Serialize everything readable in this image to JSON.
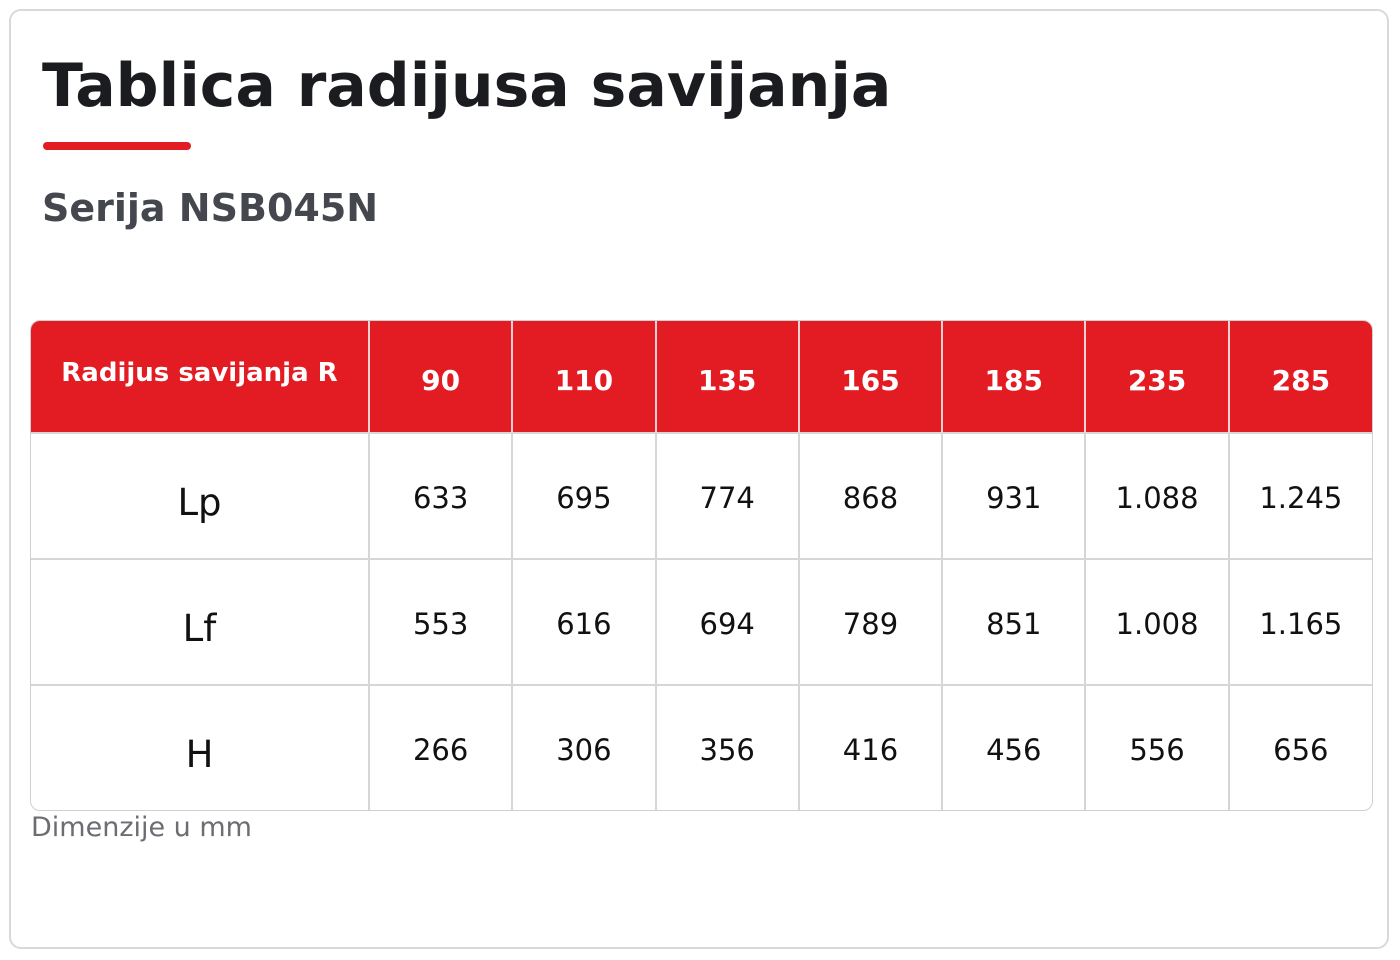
{
  "header": {
    "title": "Tablica radijusa savijanja",
    "subtitle": "Serija NSB045N"
  },
  "table": {
    "header": [
      "Radijus savijanja R",
      "90",
      "110",
      "135",
      "165",
      "185",
      "235",
      "285"
    ],
    "rows": [
      [
        "Lp",
        "633",
        "695",
        "774",
        "868",
        "931",
        "1.088",
        "1.245"
      ],
      [
        "Lf",
        "553",
        "616",
        "694",
        "789",
        "851",
        "1.008",
        "1.165"
      ],
      [
        "H",
        "266",
        "306",
        "356",
        "416",
        "456",
        "556",
        "656"
      ]
    ]
  },
  "footnote": "Dimenzije u mm"
}
